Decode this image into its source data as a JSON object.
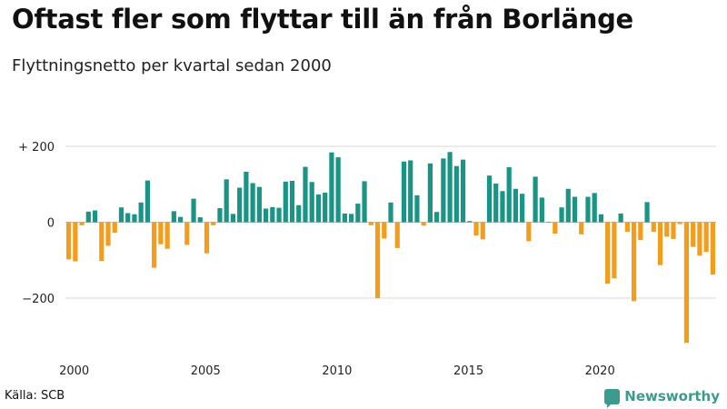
{
  "header": {
    "title": "Oftast fler som flyttar till än från Borlänge",
    "subtitle": "Flyttningsnetto per kvartal sedan 2000"
  },
  "footer": {
    "source": "Källa: SCB",
    "brand": "Newsworthy"
  },
  "colors": {
    "positive": "#1a9485",
    "negative": "#f29d1c",
    "grid": "#d9d9d9",
    "brand": "#3d9a8e"
  },
  "chart_data": {
    "type": "bar",
    "title": "Oftast fler som flyttar till än från Borlänge",
    "subtitle": "Flyttningsnetto per kvartal sedan 2000",
    "x_start": "2000-Q1",
    "ylim": [
      -320,
      200
    ],
    "y_ticks": [
      200,
      0,
      -200
    ],
    "y_tick_labels": [
      "+ 200",
      "0",
      "−200"
    ],
    "x_ticks": [
      {
        "label": "2000",
        "year": 2000
      },
      {
        "label": "2005",
        "year": 2005
      },
      {
        "label": "2010",
        "year": 2010
      },
      {
        "label": "2015",
        "year": 2015
      },
      {
        "label": "2020",
        "year": 2020
      }
    ],
    "grid": true,
    "values": [
      -98,
      -103,
      -8,
      28,
      31,
      -102,
      -62,
      -28,
      39,
      24,
      21,
      52,
      110,
      -120,
      -58,
      -70,
      29,
      14,
      -60,
      62,
      13,
      -82,
      -8,
      37,
      113,
      22,
      91,
      133,
      103,
      93,
      36,
      40,
      38,
      107,
      109,
      45,
      146,
      106,
      73,
      78,
      184,
      171,
      23,
      22,
      49,
      108,
      -8,
      -200,
      -43,
      52,
      -68,
      160,
      163,
      71,
      -9,
      155,
      27,
      168,
      185,
      148,
      165,
      3,
      -35,
      -45,
      123,
      102,
      82,
      145,
      88,
      75,
      -50,
      120,
      65,
      0,
      -30,
      39,
      88,
      67,
      -32,
      67,
      77,
      21,
      -162,
      -148,
      23,
      -25,
      -208,
      -47,
      53,
      -25,
      -113,
      -38,
      -44,
      -5,
      -318,
      -65,
      -88,
      -78,
      -138
    ]
  }
}
